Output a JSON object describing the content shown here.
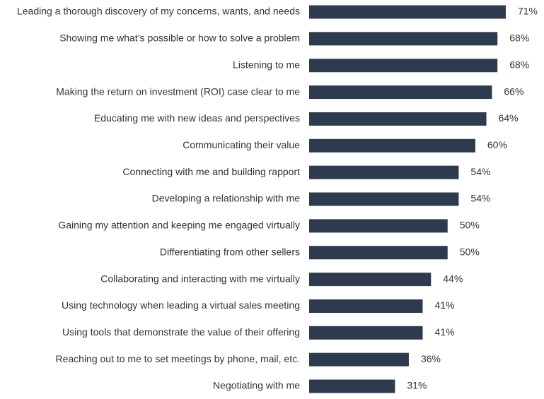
{
  "chart_data": {
    "type": "bar",
    "orientation": "horizontal",
    "color": "#2e3a4d",
    "categories": [
      "Leading a thorough discovery of my concerns, wants, and needs",
      "Showing me what’s possible or how to solve a problem",
      "Listening to me",
      "Making the return on investment (ROI) case clear to me",
      "Educating me with new ideas and perspectives",
      "Communicating their value",
      "Connecting with me and building rapport",
      "Developing a relationship with me",
      "Gaining my attention and keeping me engaged virtually",
      "Differentiating from other sellers",
      "Collaborating and interacting with me virtually",
      "Using technology when leading a virtual sales meeting",
      "Using tools that demonstrate the value of their offering",
      "Reaching out to me to set meetings by phone, mail, etc.",
      "Negotiating with me"
    ],
    "values": [
      71,
      68,
      68,
      66,
      64,
      60,
      54,
      54,
      50,
      50,
      44,
      41,
      41,
      36,
      31
    ],
    "value_labels": [
      "71%",
      "68%",
      "68%",
      "66%",
      "64%",
      "60%",
      "54%",
      "54%",
      "50%",
      "50%",
      "44%",
      "41%",
      "41%",
      "36%",
      "31%"
    ]
  }
}
